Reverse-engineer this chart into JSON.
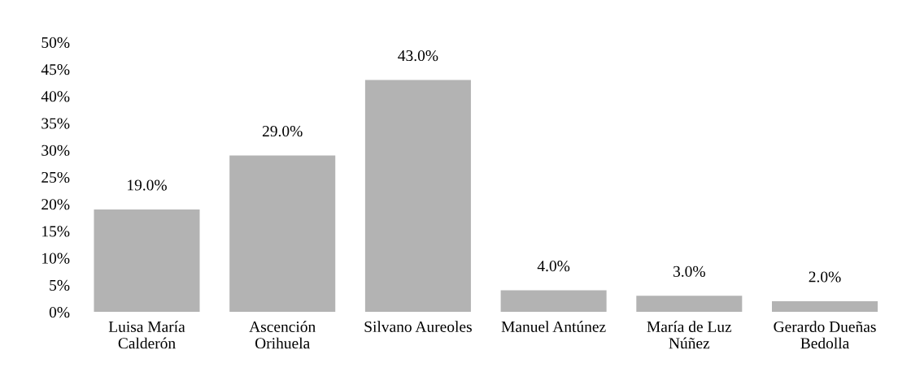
{
  "chart_data": {
    "type": "bar",
    "categories": [
      "Luisa María\nCalderón",
      "Ascención\nOrihuela",
      "Silvano Aureoles",
      "Manuel Antúnez",
      "María de Luz\nNúñez",
      "Gerardo Dueñas\nBedolla"
    ],
    "values": [
      19,
      29,
      43,
      4,
      3,
      2
    ],
    "value_labels": [
      "19.0%",
      "29.0%",
      "43.0%",
      "4.0%",
      "3.0%",
      "2.0%"
    ],
    "color": "#b3b3b3",
    "ylim": [
      0,
      50
    ],
    "yticks": [
      {
        "value": 0,
        "label": "0%"
      },
      {
        "value": 5,
        "label": "5%"
      },
      {
        "value": 10,
        "label": "10%"
      },
      {
        "value": 15,
        "label": "15%"
      },
      {
        "value": 20,
        "label": "20%"
      },
      {
        "value": 25,
        "label": "25%"
      },
      {
        "value": 30,
        "label": "30%"
      },
      {
        "value": 35,
        "label": "35%"
      },
      {
        "value": 40,
        "label": "40%"
      },
      {
        "value": 45,
        "label": "45%"
      },
      {
        "value": 50,
        "label": "50%"
      }
    ],
    "grid": false,
    "legend": false
  }
}
